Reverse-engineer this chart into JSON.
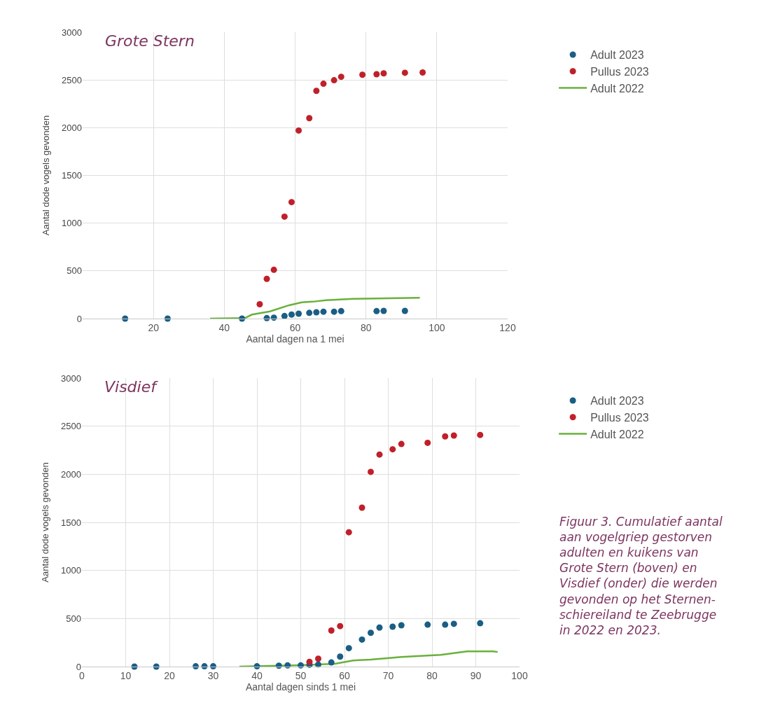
{
  "chart_data": [
    {
      "type": "scatter",
      "title": "Grote Stern",
      "xlabel": "Aantal dagen na 1 mei",
      "ylabel": "Aantal dode vogels gevonden",
      "xlim": [
        0,
        120
      ],
      "xticks": [
        20,
        40,
        60,
        80,
        100,
        120
      ],
      "ylim": [
        0,
        3000
      ],
      "yticks": [
        0,
        500,
        1000,
        1500,
        2000,
        2500,
        3000
      ],
      "grid": true,
      "legend": "top right",
      "marker": "circle",
      "series": [
        {
          "name": "Adult 2023",
          "color": "#1a5e85",
          "x": [
            12,
            24,
            45,
            52,
            54,
            57,
            59,
            61,
            64,
            66,
            68,
            71,
            73,
            83,
            85,
            91
          ],
          "values": [
            0,
            0,
            0,
            5,
            10,
            27,
            42,
            51,
            60,
            66,
            72,
            72,
            78,
            78,
            81,
            81
          ]
        },
        {
          "name": "Pullus 2023",
          "color": "#c0202a",
          "x": [
            50,
            52,
            54,
            57,
            59,
            61,
            64,
            66,
            68,
            71,
            73,
            79,
            83,
            85,
            91,
            96
          ],
          "values": [
            150,
            416,
            511,
            1068,
            1220,
            1970,
            2100,
            2386,
            2460,
            2497,
            2533,
            2554,
            2560,
            2569,
            2575,
            2578
          ]
        },
        {
          "name": "Adult 2022",
          "type": "line",
          "color": "#6ab03c",
          "marker": "none",
          "x": [
            36,
            45.8,
            47.8,
            52.9,
            58.3,
            61.9,
            65,
            68.7,
            76.4,
            95.2
          ],
          "values": [
            0,
            5,
            42,
            75,
            140,
            170,
            177,
            192,
            207,
            218
          ]
        }
      ]
    },
    {
      "type": "scatter",
      "title": "Visdief",
      "xlabel": "Aantal dagen sinds 1 mei",
      "ylabel": "Aantal dode vogels gevonden",
      "xlim": [
        0,
        100
      ],
      "xticks": [
        0,
        10,
        20,
        30,
        40,
        50,
        60,
        70,
        80,
        90,
        100
      ],
      "ylim": [
        0,
        3000
      ],
      "yticks": [
        0,
        500,
        1000,
        1500,
        2000,
        2500,
        3000
      ],
      "grid": true,
      "legend": "top right",
      "marker": "circle",
      "annotations": [
        "Figuur 3. Cumulatief aantal\naan vogelgriep gestorven\nadulten en kuikens van\nGrote Stern (boven) en\nVisdief (onder) die werden\ngevonden op het Sternen-\nschiereiland te Zeebrugge\nin 2022 en 2023."
      ],
      "series": [
        {
          "name": "Adult 2023",
          "color": "#1a5e85",
          "x": [
            12,
            17,
            26,
            28,
            30,
            40,
            45,
            47,
            50,
            52,
            54,
            57,
            59,
            61,
            64,
            66,
            68,
            71,
            73,
            79,
            83,
            85,
            91
          ],
          "values": [
            0,
            0,
            3,
            3,
            3,
            3,
            9,
            12,
            12,
            18,
            21,
            43,
            104,
            192,
            281,
            351,
            406,
            415,
            430,
            436,
            436,
            445,
            451
          ]
        },
        {
          "name": "Pullus 2023",
          "color": "#c0202a",
          "x": [
            52,
            54,
            57,
            59,
            61,
            64,
            66,
            68,
            71,
            73,
            79,
            83,
            85,
            91
          ],
          "values": [
            49,
            82,
            375,
            421,
            1397,
            1653,
            2025,
            2205,
            2260,
            2315,
            2327,
            2394,
            2403,
            2409
          ]
        },
        {
          "name": "Adult 2022",
          "type": "line",
          "color": "#6ab03c",
          "marker": "none",
          "x": [
            36,
            50,
            57.8,
            62,
            66,
            73,
            82,
            88,
            94,
            95
          ],
          "values": [
            0,
            15,
            30,
            64,
            73,
            101,
            122,
            159,
            159,
            152
          ]
        }
      ]
    }
  ]
}
